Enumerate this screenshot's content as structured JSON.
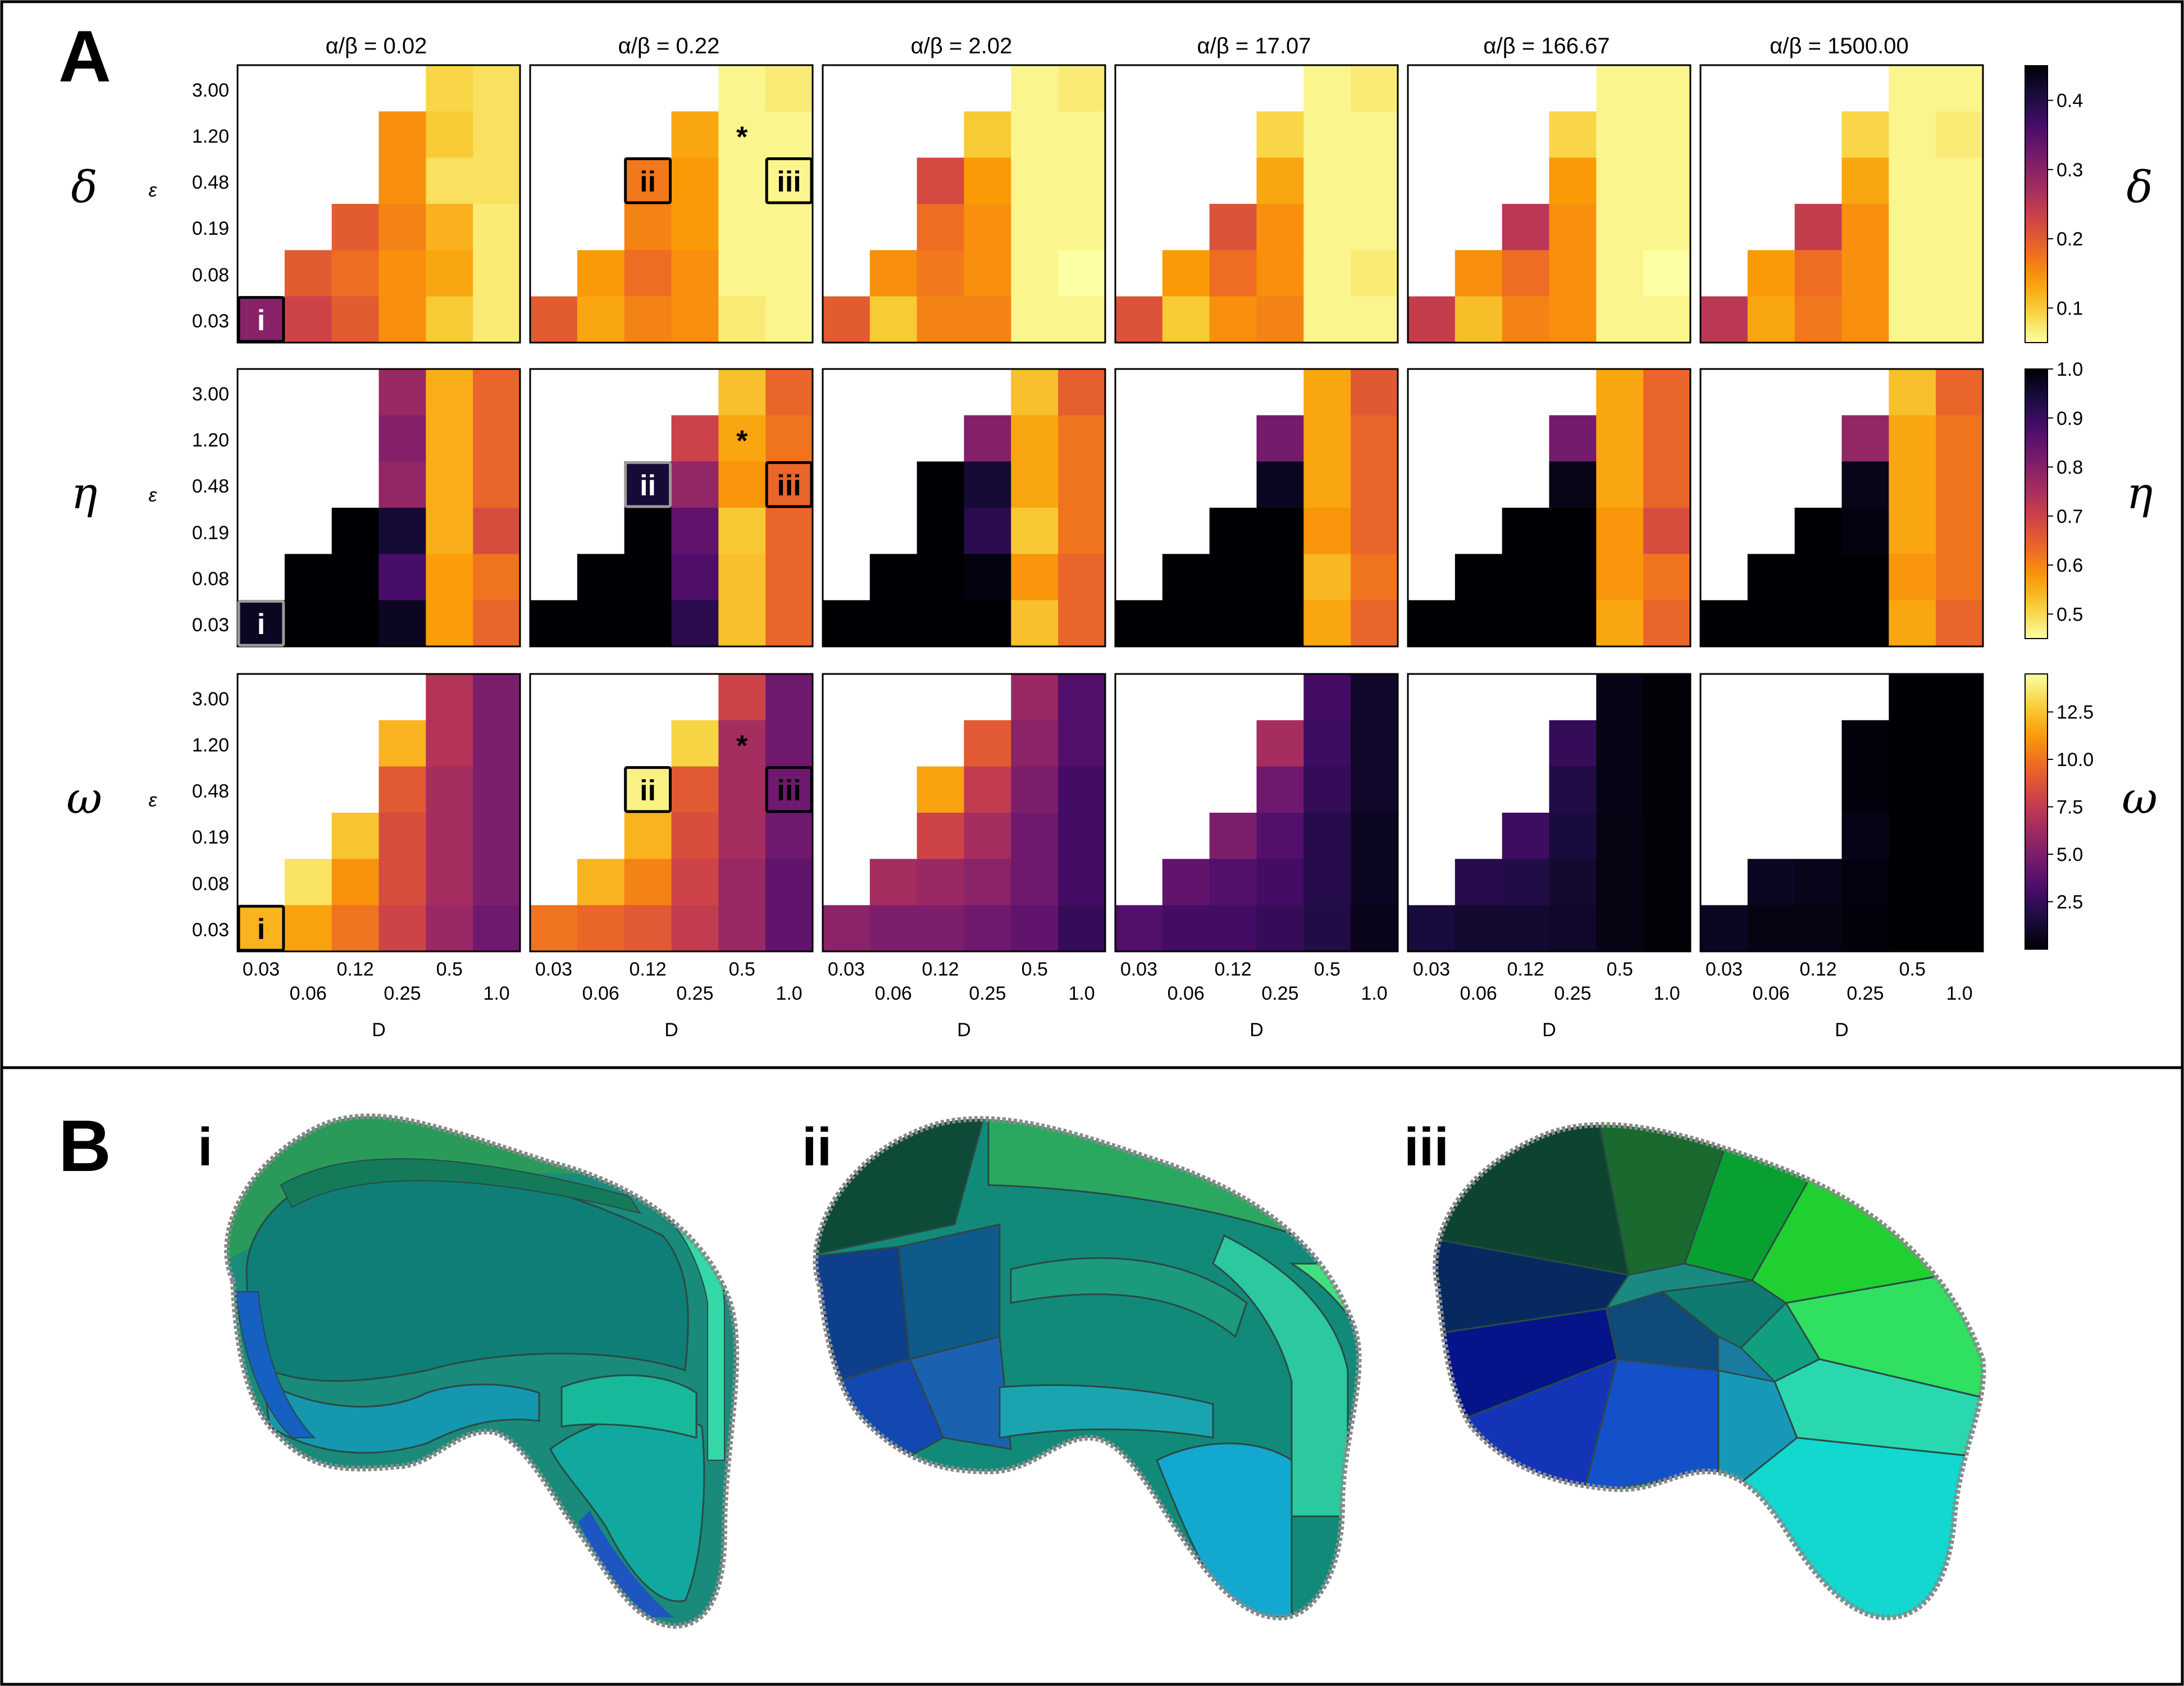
{
  "panel_a": {
    "label": "A",
    "col_titles": [
      "α/β = 0.02",
      "α/β = 0.22",
      "α/β = 2.02",
      "α/β = 17.07",
      "α/β = 166.67",
      "α/β = 1500.00"
    ],
    "x_axis_label": "D",
    "y_axis_label": "ε",
    "x_ticks": [
      "0.03",
      "0.06",
      "0.12",
      "0.25",
      "0.5",
      "1.0"
    ],
    "y_ticks": [
      "3.00",
      "1.20",
      "0.48",
      "0.19",
      "0.08",
      "0.03"
    ],
    "row_labels": [
      "δ",
      "η",
      "ω"
    ],
    "markers": [
      "i",
      "ii",
      "iii"
    ],
    "star_symbol": "*"
  },
  "colorbars": [
    {
      "metric": "δ",
      "palette": "inferno_r",
      "range": [
        0.05,
        0.45
      ],
      "ticks": [
        "0.4",
        "0.3",
        "0.2",
        "0.1"
      ],
      "tick_values": [
        0.4,
        0.3,
        0.2,
        0.1
      ]
    },
    {
      "metric": "η",
      "palette": "inferno_r",
      "range": [
        0.45,
        1.0
      ],
      "ticks": [
        "1.0",
        "0.9",
        "0.8",
        "0.7",
        "0.6",
        "0.5"
      ],
      "tick_values": [
        1.0,
        0.9,
        0.8,
        0.7,
        0.6,
        0.5
      ]
    },
    {
      "metric": "ω",
      "palette": "inferno",
      "range": [
        0.0,
        14.5
      ],
      "ticks": [
        "12.5",
        "10.0",
        "7.5",
        "5.0",
        "2.5"
      ],
      "tick_values": [
        12.5,
        10.0,
        7.5,
        5.0,
        2.5
      ]
    }
  ],
  "chart_data": {
    "type": "heatmap",
    "x": [
      "0.03",
      "0.06",
      "0.12",
      "0.25",
      "0.5",
      "1.0"
    ],
    "y": [
      "3.00",
      "1.20",
      "0.48",
      "0.19",
      "0.08",
      "0.03"
    ],
    "xlabel": "D",
    "ylabel": "ε",
    "columns": [
      "α/β = 0.02",
      "α/β = 0.22",
      "α/β = 2.02",
      "α/β = 17.07",
      "α/β = 166.67",
      "α/β = 1500.00"
    ],
    "metrics": [
      {
        "name": "δ",
        "grids": [
          [
            [
              null,
              null,
              null,
              null,
              0.09,
              0.08
            ],
            [
              null,
              null,
              null,
              0.15,
              0.1,
              0.08
            ],
            [
              null,
              null,
              null,
              0.15,
              0.08,
              0.08
            ],
            [
              null,
              null,
              0.2,
              0.16,
              0.12,
              0.07
            ],
            [
              null,
              0.2,
              0.18,
              0.15,
              0.13,
              0.07
            ],
            [
              0.3,
              0.23,
              0.2,
              0.15,
              0.1,
              0.07
            ]
          ],
          [
            [
              null,
              null,
              null,
              null,
              0.06,
              0.07
            ],
            [
              null,
              null,
              null,
              0.13,
              0.06,
              0.06
            ],
            [
              null,
              null,
              0.17,
              0.14,
              0.06,
              0.06
            ],
            [
              null,
              null,
              0.16,
              0.14,
              0.06,
              0.06
            ],
            [
              null,
              0.14,
              0.18,
              0.15,
              0.06,
              0.06
            ],
            [
              0.2,
              0.13,
              0.16,
              0.15,
              0.07,
              0.06
            ]
          ],
          [
            [
              null,
              null,
              null,
              null,
              0.06,
              0.07
            ],
            [
              null,
              null,
              null,
              0.1,
              0.06,
              0.06
            ],
            [
              null,
              null,
              0.22,
              0.14,
              0.06,
              0.06
            ],
            [
              null,
              null,
              0.18,
              0.15,
              0.06,
              0.06
            ],
            [
              null,
              0.15,
              0.17,
              0.15,
              0.06,
              0.05
            ],
            [
              0.2,
              0.1,
              0.16,
              0.16,
              0.06,
              0.06
            ]
          ],
          [
            [
              null,
              null,
              null,
              null,
              0.06,
              0.07
            ],
            [
              null,
              null,
              null,
              0.09,
              0.06,
              0.06
            ],
            [
              null,
              null,
              null,
              0.13,
              0.06,
              0.06
            ],
            [
              null,
              null,
              0.21,
              0.15,
              0.06,
              0.06
            ],
            [
              null,
              0.14,
              0.18,
              0.15,
              0.06,
              0.07
            ],
            [
              0.21,
              0.1,
              0.15,
              0.16,
              0.06,
              0.06
            ]
          ],
          [
            [
              null,
              null,
              null,
              null,
              0.06,
              0.06
            ],
            [
              null,
              null,
              null,
              0.09,
              0.06,
              0.06
            ],
            [
              null,
              null,
              null,
              0.14,
              0.06,
              0.06
            ],
            [
              null,
              null,
              0.25,
              0.15,
              0.06,
              0.06
            ],
            [
              null,
              0.15,
              0.18,
              0.15,
              0.06,
              0.05
            ],
            [
              0.24,
              0.11,
              0.16,
              0.15,
              0.06,
              0.06
            ]
          ],
          [
            [
              null,
              null,
              null,
              null,
              0.06,
              0.06
            ],
            [
              null,
              null,
              null,
              0.09,
              0.06,
              0.07
            ],
            [
              null,
              null,
              null,
              0.13,
              0.06,
              0.06
            ],
            [
              null,
              null,
              0.24,
              0.15,
              0.06,
              0.06
            ],
            [
              null,
              0.14,
              0.18,
              0.15,
              0.06,
              0.06
            ],
            [
              0.25,
              0.13,
              0.17,
              0.15,
              0.06,
              0.06
            ]
          ]
        ]
      },
      {
        "name": "η",
        "grids": [
          [
            [
              null,
              null,
              null,
              0.77,
              0.55,
              0.64
            ],
            [
              null,
              null,
              null,
              0.8,
              0.55,
              0.64
            ],
            [
              null,
              null,
              null,
              0.78,
              0.55,
              0.64
            ],
            [
              null,
              null,
              1.0,
              0.95,
              0.55,
              0.68
            ],
            [
              null,
              1.0,
              1.0,
              0.88,
              0.57,
              0.62
            ],
            [
              0.97,
              1.0,
              1.0,
              0.97,
              0.57,
              0.64
            ]
          ],
          [
            [
              null,
              null,
              null,
              null,
              0.53,
              0.64
            ],
            [
              null,
              null,
              null,
              0.7,
              0.56,
              0.62
            ],
            [
              null,
              null,
              0.95,
              0.78,
              0.58,
              0.64
            ],
            [
              null,
              null,
              1.0,
              0.85,
              0.52,
              0.64
            ],
            [
              null,
              1.0,
              1.0,
              0.87,
              0.53,
              0.64
            ],
            [
              1.0,
              1.0,
              1.0,
              0.92,
              0.53,
              0.64
            ]
          ],
          [
            [
              null,
              null,
              null,
              null,
              0.53,
              0.65
            ],
            [
              null,
              null,
              null,
              0.8,
              0.56,
              0.62
            ],
            [
              null,
              null,
              1.0,
              0.95,
              0.56,
              0.62
            ],
            [
              null,
              null,
              1.0,
              0.92,
              0.52,
              0.62
            ],
            [
              null,
              1.0,
              1.0,
              0.99,
              0.58,
              0.64
            ],
            [
              1.0,
              1.0,
              1.0,
              1.0,
              0.53,
              0.64
            ]
          ],
          [
            [
              null,
              null,
              null,
              null,
              0.56,
              0.66
            ],
            [
              null,
              null,
              null,
              0.82,
              0.56,
              0.64
            ],
            [
              null,
              null,
              null,
              0.97,
              0.56,
              0.64
            ],
            [
              null,
              null,
              1.0,
              1.0,
              0.58,
              0.64
            ],
            [
              null,
              1.0,
              1.0,
              1.0,
              0.54,
              0.62
            ],
            [
              1.0,
              1.0,
              1.0,
              1.0,
              0.56,
              0.64
            ]
          ],
          [
            [
              null,
              null,
              null,
              null,
              0.56,
              0.64
            ],
            [
              null,
              null,
              null,
              0.82,
              0.56,
              0.64
            ],
            [
              null,
              null,
              null,
              0.98,
              0.56,
              0.64
            ],
            [
              null,
              null,
              1.0,
              1.0,
              0.58,
              0.68
            ],
            [
              null,
              1.0,
              1.0,
              1.0,
              0.58,
              0.62
            ],
            [
              1.0,
              1.0,
              1.0,
              1.0,
              0.56,
              0.64
            ]
          ],
          [
            [
              null,
              null,
              null,
              null,
              0.53,
              0.64
            ],
            [
              null,
              null,
              null,
              0.78,
              0.56,
              0.62
            ],
            [
              null,
              null,
              null,
              0.98,
              0.56,
              0.62
            ],
            [
              null,
              null,
              1.0,
              0.99,
              0.56,
              0.62
            ],
            [
              null,
              1.0,
              1.0,
              1.0,
              0.58,
              0.62
            ],
            [
              1.0,
              1.0,
              1.0,
              1.0,
              0.56,
              0.64
            ]
          ]
        ]
      },
      {
        "name": "ω",
        "grids": [
          [
            [
              null,
              null,
              null,
              null,
              7.0,
              5.0
            ],
            [
              null,
              null,
              null,
              12.0,
              7.0,
              5.0
            ],
            [
              null,
              null,
              null,
              9.0,
              6.5,
              5.0
            ],
            [
              null,
              null,
              12.5,
              8.5,
              6.5,
              5.0
            ],
            [
              null,
              13.5,
              11.0,
              8.5,
              6.5,
              5.0
            ],
            [
              12.0,
              11.5,
              10.0,
              8.0,
              6.0,
              4.5
            ]
          ],
          [
            [
              null,
              null,
              null,
              null,
              8.0,
              4.5
            ],
            [
              null,
              null,
              null,
              13.0,
              6.5,
              4.5
            ],
            [
              null,
              null,
              14.0,
              9.0,
              6.5,
              4.5
            ],
            [
              null,
              null,
              12.0,
              8.5,
              6.5,
              4.5
            ],
            [
              null,
              12.0,
              10.5,
              8.0,
              6.0,
              4.0
            ],
            [
              10.0,
              9.5,
              9.0,
              7.5,
              6.0,
              4.0
            ]
          ],
          [
            [
              null,
              null,
              null,
              null,
              6.0,
              3.5
            ],
            [
              null,
              null,
              null,
              9.0,
              5.5,
              3.5
            ],
            [
              null,
              null,
              11.5,
              7.5,
              5.0,
              3.0
            ],
            [
              null,
              null,
              8.0,
              6.5,
              4.5,
              3.0
            ],
            [
              null,
              6.5,
              6.0,
              5.5,
              4.5,
              3.0
            ],
            [
              5.5,
              5.0,
              5.0,
              4.5,
              4.0,
              2.5
            ]
          ],
          [
            [
              null,
              null,
              null,
              null,
              3.0,
              1.0
            ],
            [
              null,
              null,
              null,
              6.5,
              2.8,
              1.0
            ],
            [
              null,
              null,
              null,
              4.5,
              2.5,
              1.0
            ],
            [
              null,
              null,
              5.0,
              3.5,
              2.0,
              0.8
            ],
            [
              null,
              4.0,
              3.5,
              3.0,
              2.0,
              0.8
            ],
            [
              3.5,
              3.0,
              3.0,
              2.5,
              1.8,
              0.6
            ]
          ],
          [
            [
              null,
              null,
              null,
              null,
              0.5,
              0.1
            ],
            [
              null,
              null,
              null,
              2.5,
              0.5,
              0.1
            ],
            [
              null,
              null,
              null,
              1.8,
              0.5,
              0.1
            ],
            [
              null,
              null,
              2.8,
              1.5,
              0.4,
              0.1
            ],
            [
              null,
              2.0,
              1.8,
              1.2,
              0.4,
              0.1
            ],
            [
              1.5,
              1.2,
              1.2,
              1.0,
              0.4,
              0.1
            ]
          ],
          [
            [
              null,
              null,
              null,
              null,
              0.0,
              0.0
            ],
            [
              null,
              null,
              null,
              0.2,
              0.0,
              0.0
            ],
            [
              null,
              null,
              null,
              0.2,
              0.0,
              0.0
            ],
            [
              null,
              null,
              null,
              0.5,
              0.0,
              0.0
            ],
            [
              null,
              0.8,
              0.6,
              0.3,
              0.0,
              0.0
            ],
            [
              0.8,
              0.4,
              0.4,
              0.2,
              0.0,
              0.0
            ]
          ]
        ]
      }
    ],
    "annotations": [
      {
        "text": "i",
        "metric_rows": [
          "δ",
          "η",
          "ω"
        ],
        "column": "α/β = 0.02",
        "D": "0.03",
        "ε": "0.03"
      },
      {
        "text": "ii",
        "metric_rows": [
          "δ",
          "η",
          "ω"
        ],
        "column": "α/β = 0.22",
        "D": "0.12",
        "ε": "0.48"
      },
      {
        "text": "iii",
        "metric_rows": [
          "δ",
          "η",
          "ω"
        ],
        "column": "α/β = 0.22",
        "D": "1.0",
        "ε": "0.48"
      },
      {
        "text": "*",
        "metric_rows": [
          "δ",
          "η",
          "ω"
        ],
        "column": "α/β = 0.22",
        "D": "0.5",
        "ε": "1.20"
      }
    ]
  },
  "panel_b": {
    "label": "B",
    "sub_labels": [
      "i",
      "ii",
      "iii"
    ]
  }
}
